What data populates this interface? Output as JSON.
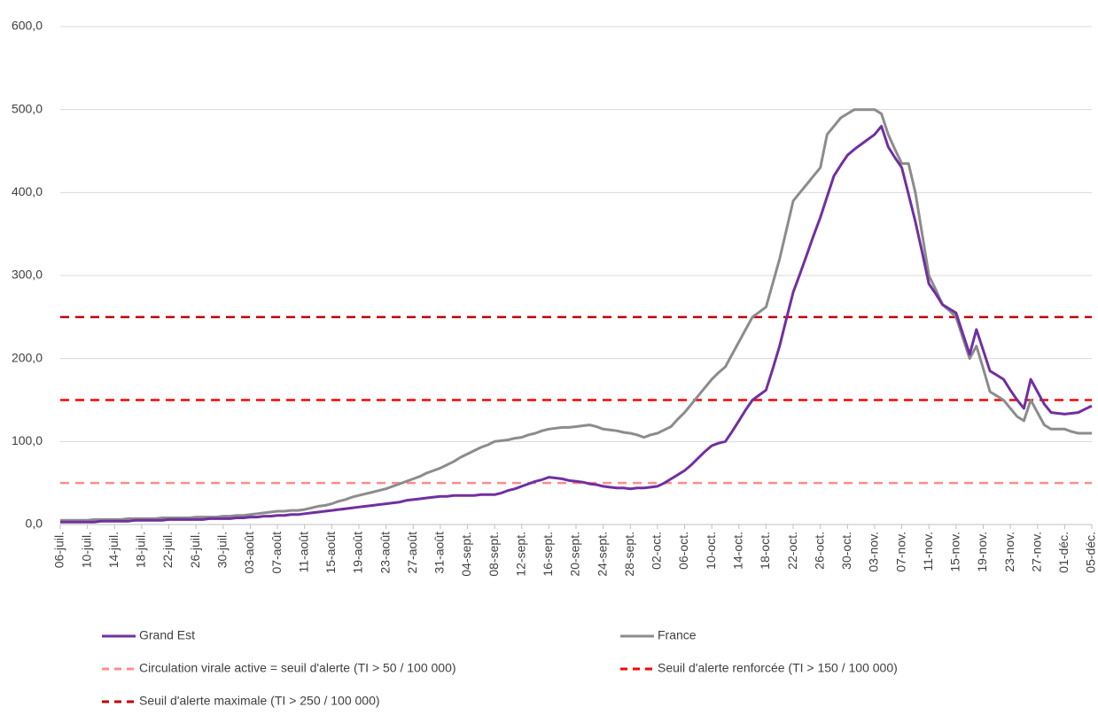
{
  "chart_data": {
    "type": "line",
    "categories": [
      "06-juil.",
      null,
      null,
      null,
      "10-juil.",
      null,
      null,
      null,
      "14-juil.",
      null,
      null,
      null,
      "18-juil.",
      null,
      null,
      null,
      "22-juil.",
      null,
      null,
      null,
      "26-juil.",
      null,
      null,
      null,
      "30-juil.",
      null,
      null,
      null,
      "03-août",
      null,
      null,
      null,
      "07-août",
      null,
      null,
      null,
      "11-août",
      null,
      null,
      null,
      "15-août",
      null,
      null,
      null,
      "19-août",
      null,
      null,
      null,
      "23-août",
      null,
      null,
      null,
      "27-août",
      null,
      null,
      null,
      "31-août",
      null,
      null,
      null,
      "04-sept.",
      null,
      null,
      null,
      "08-sept.",
      null,
      null,
      null,
      "12-sept.",
      null,
      null,
      null,
      "16-sept.",
      null,
      null,
      null,
      "20-sept.",
      null,
      null,
      null,
      "24-sept.",
      null,
      null,
      null,
      "28-sept.",
      null,
      null,
      null,
      "02-oct.",
      null,
      null,
      null,
      "06-oct.",
      null,
      null,
      null,
      "10-oct.",
      null,
      null,
      null,
      "14-oct.",
      null,
      null,
      null,
      "18-oct.",
      null,
      null,
      null,
      "22-oct.",
      null,
      null,
      null,
      "26-oct.",
      null,
      null,
      null,
      "30-oct.",
      null,
      null,
      null,
      "03-nov.",
      null,
      null,
      null,
      "07-nov.",
      null,
      null,
      null,
      "11-nov.",
      null,
      null,
      null,
      "15-nov.",
      null,
      null,
      null,
      "19-nov.",
      null,
      null,
      null,
      "23-nov.",
      null,
      null,
      null,
      "27-nov.",
      null,
      null,
      null,
      "01-déc.",
      null,
      null,
      null,
      "05-déc."
    ],
    "series": [
      {
        "name": "Grand Est",
        "color": "#7030a0",
        "values": [
          3,
          3,
          3,
          3,
          3,
          3,
          4,
          4,
          4,
          4,
          4,
          5,
          5,
          5,
          5,
          5,
          6,
          6,
          6,
          6,
          6,
          6,
          7,
          7,
          7,
          7,
          8,
          8,
          9,
          9,
          10,
          10,
          11,
          11,
          12,
          12,
          13,
          14,
          15,
          16,
          17,
          18,
          19,
          20,
          21,
          22,
          23,
          24,
          25,
          26,
          27,
          29,
          30,
          31,
          32,
          33,
          34,
          34,
          35,
          35,
          35,
          35,
          36,
          36,
          36,
          38,
          41,
          43,
          46,
          49,
          52,
          54,
          57,
          56,
          55,
          53,
          52,
          51,
          49,
          48,
          46,
          45,
          44,
          44,
          43,
          44,
          44,
          45,
          46,
          50,
          55,
          60,
          65,
          72,
          80,
          88,
          95,
          98,
          100,
          112,
          125,
          138,
          150,
          156,
          162,
          188,
          215,
          248,
          280,
          302,
          325,
          348,
          370,
          395,
          420,
          433,
          445,
          452,
          458,
          464,
          470,
          480,
          455,
          442,
          430,
          398,
          365,
          328,
          290,
          278,
          265,
          260,
          255,
          230,
          205,
          235,
          210,
          185,
          180,
          175,
          162,
          150,
          140,
          175,
          160,
          145,
          135,
          134,
          133,
          134,
          135,
          139,
          143
        ]
      },
      {
        "name": "France",
        "color": "#8c8c8c",
        "values": [
          5,
          5,
          5,
          5,
          5,
          6,
          6,
          6,
          6,
          6,
          7,
          7,
          7,
          7,
          7,
          8,
          8,
          8,
          8,
          8,
          9,
          9,
          9,
          9,
          10,
          10,
          11,
          11,
          12,
          13,
          14,
          15,
          16,
          16,
          17,
          17,
          18,
          20,
          22,
          23,
          25,
          28,
          30,
          33,
          35,
          37,
          39,
          41,
          43,
          46,
          49,
          52,
          55,
          58,
          62,
          65,
          68,
          72,
          76,
          81,
          85,
          89,
          93,
          96,
          100,
          101,
          102,
          104,
          105,
          108,
          110,
          113,
          115,
          116,
          117,
          117,
          118,
          119,
          120,
          118,
          115,
          114,
          113,
          111,
          110,
          108,
          105,
          108,
          110,
          114,
          118,
          127,
          135,
          145,
          155,
          165,
          175,
          183,
          190,
          205,
          220,
          235,
          250,
          256,
          262,
          291,
          320,
          355,
          390,
          400,
          410,
          420,
          430,
          470,
          480,
          490,
          495,
          500,
          500,
          500,
          500,
          495,
          470,
          452,
          435,
          435,
          400,
          350,
          300,
          283,
          265,
          258,
          250,
          225,
          200,
          215,
          188,
          160,
          155,
          150,
          140,
          130,
          125,
          150,
          135,
          120,
          115,
          115,
          115,
          112,
          110,
          110,
          110
        ]
      }
    ],
    "reference_lines": [
      {
        "name": "Circulation virale active = seuil d'alerte (TI > 50 / 100 000)",
        "value": 50,
        "color": "#ff8c8c"
      },
      {
        "name": "Seuil d'alerte renforcée (TI > 150 / 100 000)",
        "value": 150,
        "color": "#ff0000"
      },
      {
        "name": "Seuil d'alerte maximale (TI > 250 / 100 000)",
        "value": 250,
        "color": "#c00000"
      }
    ],
    "ylim": [
      0,
      600
    ],
    "yticks": [
      {
        "value": 0,
        "label": "0,0"
      },
      {
        "value": 100,
        "label": "100,0"
      },
      {
        "value": 200,
        "label": "200,0"
      },
      {
        "value": 300,
        "label": "300,0"
      },
      {
        "value": 400,
        "label": "400,0"
      },
      {
        "value": 500,
        "label": "500,0"
      },
      {
        "value": 600,
        "label": "600,0"
      }
    ],
    "grid": true
  }
}
